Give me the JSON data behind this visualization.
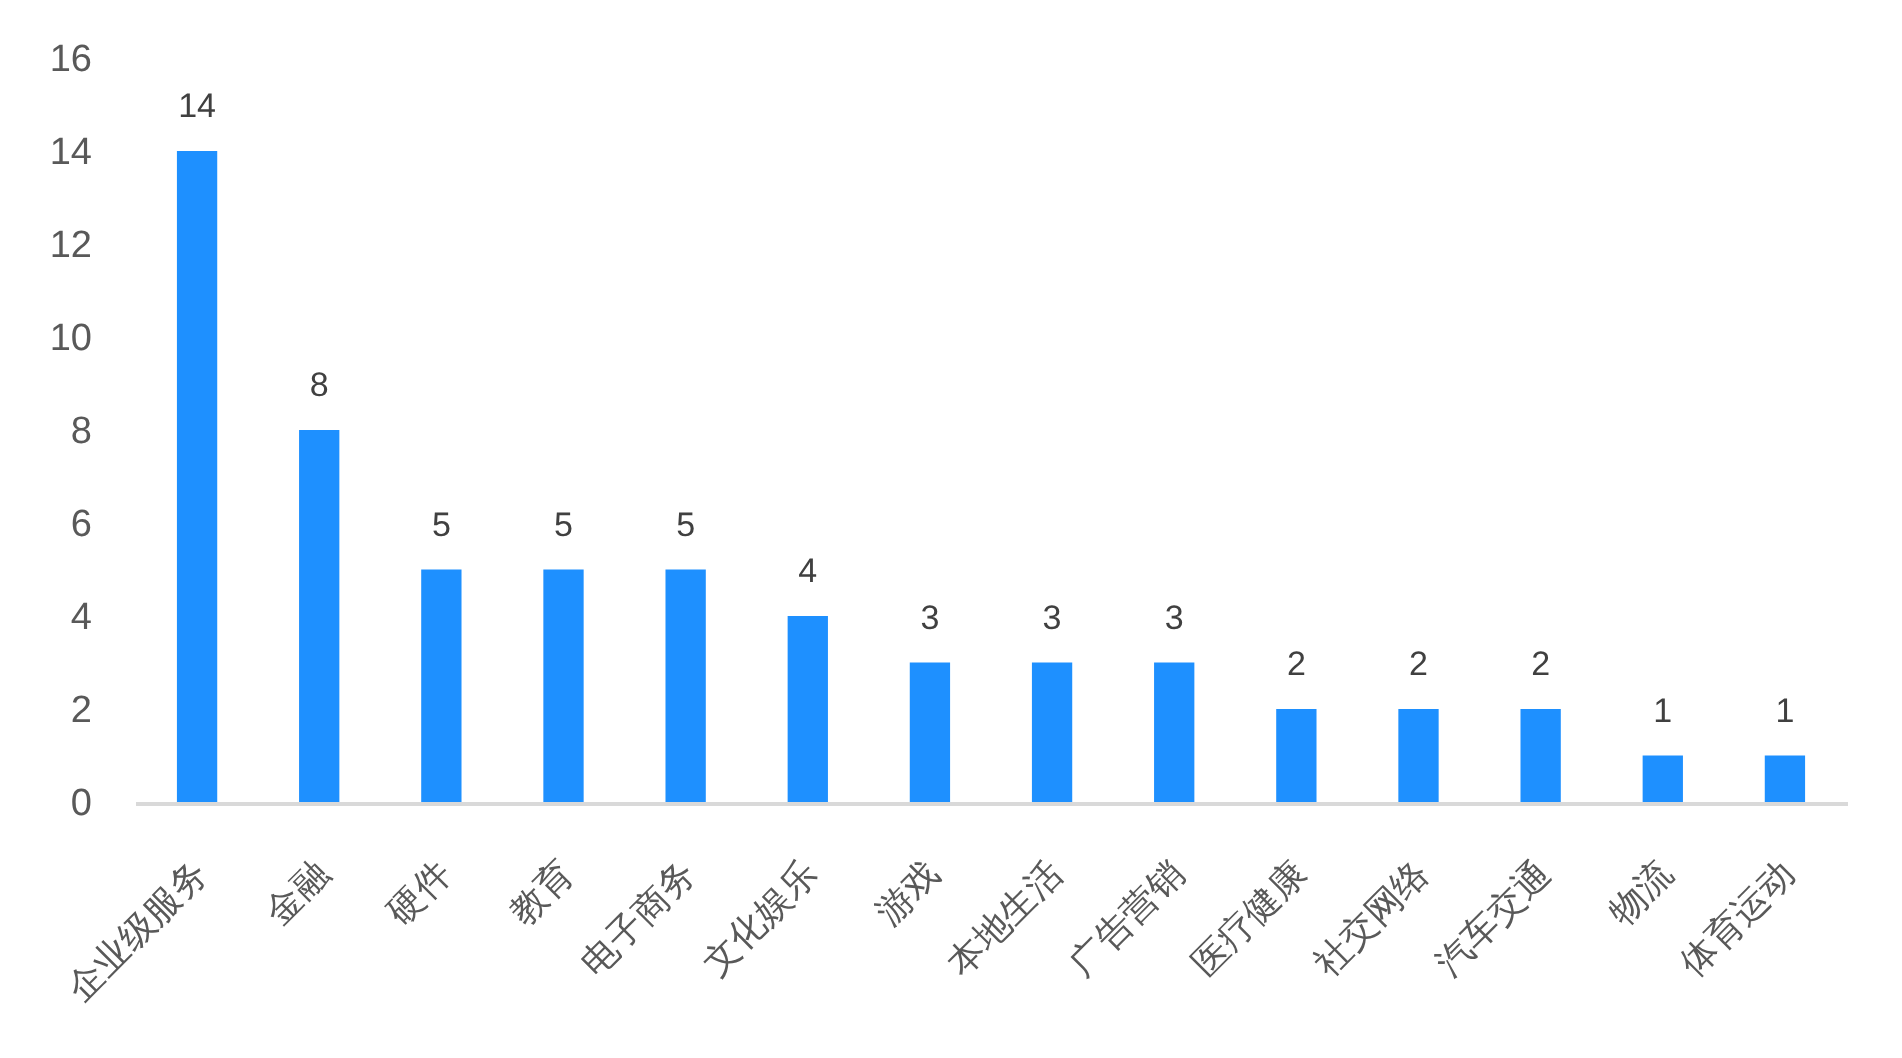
{
  "chart_data": {
    "type": "bar",
    "categories": [
      "企业级服务",
      "金融",
      "硬件",
      "教育",
      "电子商务",
      "文化娱乐",
      "游戏",
      "本地生活",
      "广告营销",
      "医疗健康",
      "社交网络",
      "汽车交通",
      "物流",
      "体育运动"
    ],
    "values": [
      14,
      8,
      5,
      5,
      5,
      4,
      3,
      3,
      3,
      2,
      2,
      2,
      1,
      1
    ],
    "color": "#1e90ff",
    "ylim": [
      0,
      16
    ],
    "yticks": [
      0,
      2,
      4,
      6,
      8,
      10,
      12,
      14,
      16
    ],
    "data_labels": true
  }
}
